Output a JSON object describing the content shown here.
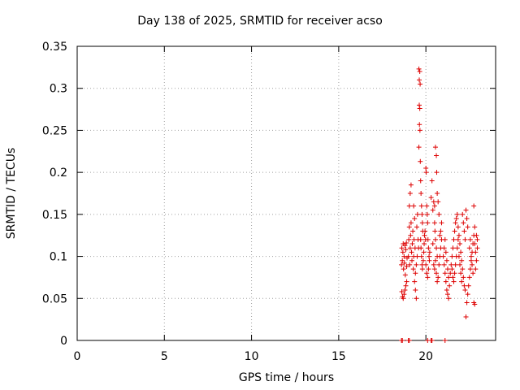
{
  "chart_data": {
    "type": "scatter",
    "title": "Day 138 of 2025, SRMTID for receiver acso",
    "xlabel": "GPS time / hours",
    "ylabel": "SRMTID / TECUs",
    "xlim": [
      0,
      24
    ],
    "ylim": [
      0,
      0.35
    ],
    "xticks": [
      "0",
      "5",
      "10",
      "15",
      "20"
    ],
    "xtick_values": [
      0,
      5,
      10,
      15,
      20
    ],
    "yticks": [
      "0",
      "0.05",
      "0.1",
      "0.15",
      "0.2",
      "0.25",
      "0.3",
      "0.35"
    ],
    "ytick_values": [
      0,
      0.05,
      0.1,
      0.15,
      0.2,
      0.25,
      0.3,
      0.35
    ],
    "grid": true,
    "marker": "+",
    "color": "#dd0000",
    "series": [
      {
        "name": "SRMTID",
        "points": [
          [
            18.6,
            0.0
          ],
          [
            18.65,
            0.0
          ],
          [
            19.0,
            0.0
          ],
          [
            19.05,
            0.0
          ],
          [
            20.1,
            0.0
          ],
          [
            20.3,
            0.0
          ],
          [
            20.35,
            0.0
          ],
          [
            21.1,
            0.0
          ],
          [
            18.6,
            0.09
          ],
          [
            18.62,
            0.11
          ],
          [
            18.65,
            0.095
          ],
          [
            18.68,
            0.105
          ],
          [
            18.7,
            0.115
          ],
          [
            18.72,
            0.085
          ],
          [
            18.75,
            0.1
          ],
          [
            18.77,
            0.092
          ],
          [
            18.8,
            0.113
          ],
          [
            18.82,
            0.078
          ],
          [
            18.85,
            0.108
          ],
          [
            18.88,
            0.116
          ],
          [
            18.9,
            0.088
          ],
          [
            18.92,
            0.098
          ],
          [
            18.62,
            0.058
          ],
          [
            18.66,
            0.052
          ],
          [
            18.7,
            0.05
          ],
          [
            18.75,
            0.055
          ],
          [
            18.8,
            0.06
          ],
          [
            18.85,
            0.065
          ],
          [
            18.9,
            0.07
          ],
          [
            19.0,
            0.1
          ],
          [
            19.02,
            0.12
          ],
          [
            19.05,
            0.135
          ],
          [
            19.07,
            0.09
          ],
          [
            19.1,
            0.11
          ],
          [
            19.12,
            0.125
          ],
          [
            19.15,
            0.14
          ],
          [
            19.18,
            0.105
          ],
          [
            19.2,
            0.095
          ],
          [
            19.22,
            0.115
          ],
          [
            19.25,
            0.13
          ],
          [
            19.28,
            0.085
          ],
          [
            19.3,
            0.1
          ],
          [
            19.32,
            0.12
          ],
          [
            19.35,
            0.145
          ],
          [
            19.38,
            0.11
          ],
          [
            19.05,
            0.16
          ],
          [
            19.1,
            0.175
          ],
          [
            19.15,
            0.185
          ],
          [
            19.3,
            0.16
          ],
          [
            19.35,
            0.07
          ],
          [
            19.4,
            0.06
          ],
          [
            19.45,
            0.05
          ],
          [
            19.4,
            0.08
          ],
          [
            19.45,
            0.09
          ],
          [
            19.5,
            0.1
          ],
          [
            19.55,
            0.12
          ],
          [
            19.48,
            0.135
          ],
          [
            19.52,
            0.15
          ],
          [
            19.58,
            0.11
          ],
          [
            19.6,
            0.323
          ],
          [
            19.65,
            0.32
          ],
          [
            19.62,
            0.31
          ],
          [
            19.67,
            0.305
          ],
          [
            19.62,
            0.28
          ],
          [
            19.65,
            0.276
          ],
          [
            19.63,
            0.257
          ],
          [
            19.66,
            0.25
          ],
          [
            19.68,
            0.213
          ],
          [
            19.6,
            0.23
          ],
          [
            19.7,
            0.19
          ],
          [
            19.72,
            0.175
          ],
          [
            19.75,
            0.16
          ],
          [
            19.78,
            0.15
          ],
          [
            19.8,
            0.14
          ],
          [
            19.82,
            0.13
          ],
          [
            19.7,
            0.12
          ],
          [
            19.72,
            0.11
          ],
          [
            19.75,
            0.1
          ],
          [
            19.78,
            0.09
          ],
          [
            19.8,
            0.085
          ],
          [
            19.85,
            0.095
          ],
          [
            19.88,
            0.105
          ],
          [
            19.9,
            0.115
          ],
          [
            19.92,
            0.125
          ],
          [
            19.95,
            0.13
          ],
          [
            19.98,
            0.12
          ],
          [
            20.0,
            0.205
          ],
          [
            20.02,
            0.2
          ],
          [
            20.05,
            0.16
          ],
          [
            20.08,
            0.15
          ],
          [
            20.1,
            0.14
          ],
          [
            20.12,
            0.12
          ],
          [
            20.15,
            0.11
          ],
          [
            20.18,
            0.1
          ],
          [
            20.0,
            0.09
          ],
          [
            20.05,
            0.08
          ],
          [
            20.1,
            0.075
          ],
          [
            20.15,
            0.085
          ],
          [
            20.2,
            0.095
          ],
          [
            20.22,
            0.105
          ],
          [
            20.3,
            0.17
          ],
          [
            20.35,
            0.19
          ],
          [
            20.4,
            0.155
          ],
          [
            20.45,
            0.165
          ],
          [
            20.5,
            0.16
          ],
          [
            20.55,
            0.23
          ],
          [
            20.6,
            0.22
          ],
          [
            20.62,
            0.2
          ],
          [
            20.5,
            0.14
          ],
          [
            20.52,
            0.13
          ],
          [
            20.55,
            0.12
          ],
          [
            20.6,
            0.11
          ],
          [
            20.65,
            0.1
          ],
          [
            20.4,
            0.115
          ],
          [
            20.45,
            0.09
          ],
          [
            20.5,
            0.085
          ],
          [
            20.55,
            0.095
          ],
          [
            20.6,
            0.08
          ],
          [
            20.65,
            0.07
          ],
          [
            20.7,
            0.075
          ],
          [
            20.75,
            0.09
          ],
          [
            20.8,
            0.1
          ],
          [
            20.85,
            0.11
          ],
          [
            20.9,
            0.12
          ],
          [
            20.8,
            0.125
          ],
          [
            20.85,
            0.13
          ],
          [
            20.9,
            0.14
          ],
          [
            20.75,
            0.15
          ],
          [
            20.7,
            0.165
          ],
          [
            20.65,
            0.175
          ],
          [
            21.0,
            0.1
          ],
          [
            21.05,
            0.09
          ],
          [
            21.1,
            0.08
          ],
          [
            21.15,
            0.07
          ],
          [
            21.2,
            0.06
          ],
          [
            21.25,
            0.055
          ],
          [
            21.3,
            0.05
          ],
          [
            21.05,
            0.11
          ],
          [
            21.1,
            0.12
          ],
          [
            21.15,
            0.105
          ],
          [
            21.2,
            0.095
          ],
          [
            21.25,
            0.085
          ],
          [
            21.3,
            0.075
          ],
          [
            21.35,
            0.065
          ],
          [
            21.4,
            0.08
          ],
          [
            21.45,
            0.09
          ],
          [
            21.5,
            0.1
          ],
          [
            21.55,
            0.11
          ],
          [
            21.6,
            0.12
          ],
          [
            21.65,
            0.13
          ],
          [
            21.7,
            0.14
          ],
          [
            21.75,
            0.145
          ],
          [
            21.8,
            0.15
          ],
          [
            21.85,
            0.135
          ],
          [
            21.9,
            0.125
          ],
          [
            21.95,
            0.115
          ],
          [
            22.0,
            0.105
          ],
          [
            22.05,
            0.095
          ],
          [
            22.1,
            0.085
          ],
          [
            22.15,
            0.075
          ],
          [
            22.2,
            0.065
          ],
          [
            22.25,
            0.06
          ],
          [
            21.5,
            0.085
          ],
          [
            21.55,
            0.075
          ],
          [
            21.6,
            0.07
          ],
          [
            21.65,
            0.08
          ],
          [
            21.7,
            0.09
          ],
          [
            21.75,
            0.1
          ],
          [
            21.8,
            0.11
          ],
          [
            21.85,
            0.12
          ],
          [
            21.9,
            0.1
          ],
          [
            21.95,
            0.09
          ],
          [
            22.0,
            0.08
          ],
          [
            22.05,
            0.07
          ],
          [
            22.1,
            0.15
          ],
          [
            22.15,
            0.14
          ],
          [
            22.2,
            0.13
          ],
          [
            22.25,
            0.12
          ],
          [
            22.3,
            0.155
          ],
          [
            22.35,
            0.145
          ],
          [
            22.4,
            0.135
          ],
          [
            22.3,
            0.028
          ],
          [
            22.35,
            0.045
          ],
          [
            22.4,
            0.055
          ],
          [
            22.45,
            0.065
          ],
          [
            22.5,
            0.075
          ],
          [
            22.55,
            0.085
          ],
          [
            22.6,
            0.095
          ],
          [
            22.65,
            0.105
          ],
          [
            22.7,
            0.115
          ],
          [
            22.75,
            0.125
          ],
          [
            22.8,
            0.135
          ],
          [
            22.5,
            0.11
          ],
          [
            22.55,
            0.12
          ],
          [
            22.6,
            0.1
          ],
          [
            22.65,
            0.09
          ],
          [
            22.7,
            0.08
          ],
          [
            22.75,
            0.16
          ],
          [
            22.8,
            0.115
          ],
          [
            22.85,
            0.105
          ],
          [
            22.9,
            0.095
          ],
          [
            22.95,
            0.11
          ],
          [
            22.75,
            0.045
          ],
          [
            22.8,
            0.043
          ],
          [
            22.85,
            0.085
          ],
          [
            22.9,
            0.125
          ],
          [
            22.95,
            0.12
          ]
        ]
      }
    ]
  }
}
